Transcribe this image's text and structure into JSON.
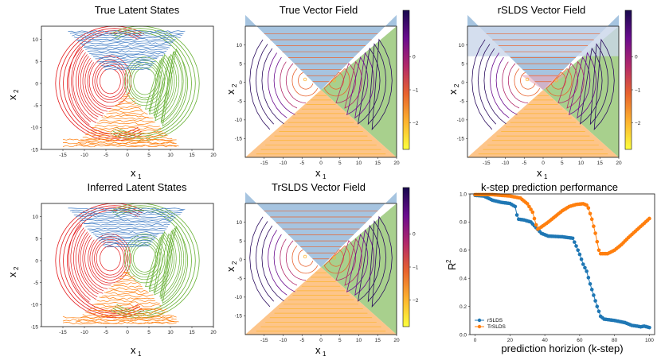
{
  "chart_data": [
    {
      "type": "line",
      "title": "True Latent States",
      "xlabel": "x",
      "xlabel_sub": "1",
      "ylabel": "x",
      "ylabel_sub": "2",
      "xlim": [
        -20,
        20
      ],
      "ylim": [
        -15,
        13
      ],
      "xticks": [
        -15,
        -10,
        -5,
        0,
        5,
        10,
        15,
        20
      ],
      "yticks": [
        -15,
        -10,
        -5,
        0,
        5,
        10
      ],
      "regions": [
        {
          "name": "top",
          "color": "#3a78c3"
        },
        {
          "name": "left",
          "color": "#e41a1c"
        },
        {
          "name": "right",
          "color": "#66b032"
        },
        {
          "name": "bottom",
          "color": "#ff7f0e"
        }
      ]
    },
    {
      "type": "vector_field",
      "title": "True Vector Field",
      "xlabel": "x",
      "xlabel_sub": "1",
      "ylabel": "x",
      "ylabel_sub": "2",
      "xlim": [
        -20,
        20
      ],
      "ylim": [
        -20,
        15
      ],
      "xticks": [
        -15,
        -10,
        -5,
        0,
        5,
        10,
        15,
        20
      ],
      "yticks": [
        -15,
        -10,
        -5,
        0,
        5,
        10
      ],
      "colorbar_ticks": [
        0,
        -1,
        -2
      ],
      "region_colors": {
        "top": "#a6c4e0",
        "left": "#f08080",
        "right": "#a8d08d",
        "bottom": "#fdc58a"
      },
      "blend": false
    },
    {
      "type": "vector_field",
      "title": "rSLDS Vector Field",
      "xlabel": "x",
      "xlabel_sub": "1",
      "ylabel": "x",
      "ylabel_sub": "2",
      "xlim": [
        -20,
        20
      ],
      "ylim": [
        -20,
        15
      ],
      "xticks": [
        -15,
        -10,
        -5,
        0,
        5,
        10,
        15,
        20
      ],
      "yticks": [
        -15,
        -10,
        -5,
        0,
        5,
        10
      ],
      "colorbar_ticks": [
        0,
        -1,
        -2
      ],
      "blend": true
    },
    {
      "type": "line",
      "title": "Inferred Latent States",
      "xlabel": "x",
      "xlabel_sub": "1",
      "ylabel": "x",
      "ylabel_sub": "2",
      "xlim": [
        -20,
        20
      ],
      "ylim": [
        -15,
        13
      ],
      "xticks": [
        -15,
        -10,
        -5,
        0,
        5,
        10,
        15,
        20
      ],
      "yticks": [
        -15,
        -10,
        -5,
        0,
        5,
        10
      ]
    },
    {
      "type": "vector_field",
      "title": "TrSLDS Vector Field",
      "xlabel": "x",
      "xlabel_sub": "1",
      "ylabel": "x",
      "ylabel_sub": "2",
      "xlim": [
        -20,
        20
      ],
      "ylim": [
        -20,
        15
      ],
      "xticks": [
        -15,
        -10,
        -5,
        0,
        5,
        10,
        15,
        20
      ],
      "yticks": [
        -15,
        -10,
        -5,
        0,
        5,
        10
      ],
      "colorbar_ticks": [
        0,
        -1,
        -2
      ],
      "blend": false
    },
    {
      "type": "scatter",
      "title": "k-step prediction performance",
      "xlabel": "prediction horizion (k-step)",
      "ylabel": "R",
      "ylabel_sup": "2",
      "xlim": [
        -3,
        103
      ],
      "ylim": [
        0,
        1.0
      ],
      "xticks": [
        0,
        20,
        40,
        60,
        80,
        100
      ],
      "yticks": [
        0.0,
        0.2,
        0.4,
        0.6,
        0.8,
        1.0
      ],
      "legend": {
        "position": "lower-left",
        "entries": [
          "rSLDS",
          "TrSLDS"
        ]
      },
      "series": [
        {
          "name": "rSLDS",
          "color": "#1f77b4",
          "keypoints": [
            [
              0,
              0.99
            ],
            [
              5,
              0.985
            ],
            [
              10,
              0.955
            ],
            [
              15,
              0.94
            ],
            [
              20,
              0.932
            ],
            [
              23,
              0.91
            ],
            [
              24,
              0.85
            ],
            [
              25,
              0.82
            ],
            [
              28,
              0.815
            ],
            [
              32,
              0.8
            ],
            [
              35,
              0.76
            ],
            [
              38,
              0.72
            ],
            [
              42,
              0.7
            ],
            [
              50,
              0.695
            ],
            [
              56,
              0.685
            ],
            [
              58,
              0.63
            ],
            [
              60,
              0.57
            ],
            [
              62,
              0.5
            ],
            [
              64,
              0.45
            ],
            [
              66,
              0.36
            ],
            [
              68,
              0.28
            ],
            [
              70,
              0.2
            ],
            [
              72,
              0.13
            ],
            [
              74,
              0.11
            ],
            [
              80,
              0.1
            ],
            [
              86,
              0.085
            ],
            [
              90,
              0.065
            ],
            [
              93,
              0.06
            ],
            [
              95,
              0.055
            ],
            [
              97,
              0.06
            ],
            [
              100,
              0.05
            ]
          ]
        },
        {
          "name": "TrSLDS",
          "color": "#ff7f0e",
          "keypoints": [
            [
              0,
              0.995
            ],
            [
              10,
              0.995
            ],
            [
              15,
              0.99
            ],
            [
              20,
              0.985
            ],
            [
              26,
              0.97
            ],
            [
              30,
              0.93
            ],
            [
              33,
              0.87
            ],
            [
              35,
              0.78
            ],
            [
              36,
              0.75
            ],
            [
              38,
              0.765
            ],
            [
              42,
              0.8
            ],
            [
              46,
              0.84
            ],
            [
              50,
              0.88
            ],
            [
              54,
              0.91
            ],
            [
              58,
              0.925
            ],
            [
              62,
              0.93
            ],
            [
              64,
              0.92
            ],
            [
              65,
              0.9
            ],
            [
              67,
              0.82
            ],
            [
              69,
              0.72
            ],
            [
              71,
              0.6
            ],
            [
              72,
              0.575
            ],
            [
              76,
              0.575
            ],
            [
              80,
              0.6
            ],
            [
              84,
              0.64
            ],
            [
              88,
              0.69
            ],
            [
              92,
              0.735
            ],
            [
              96,
              0.78
            ],
            [
              100,
              0.825
            ]
          ]
        }
      ]
    }
  ]
}
